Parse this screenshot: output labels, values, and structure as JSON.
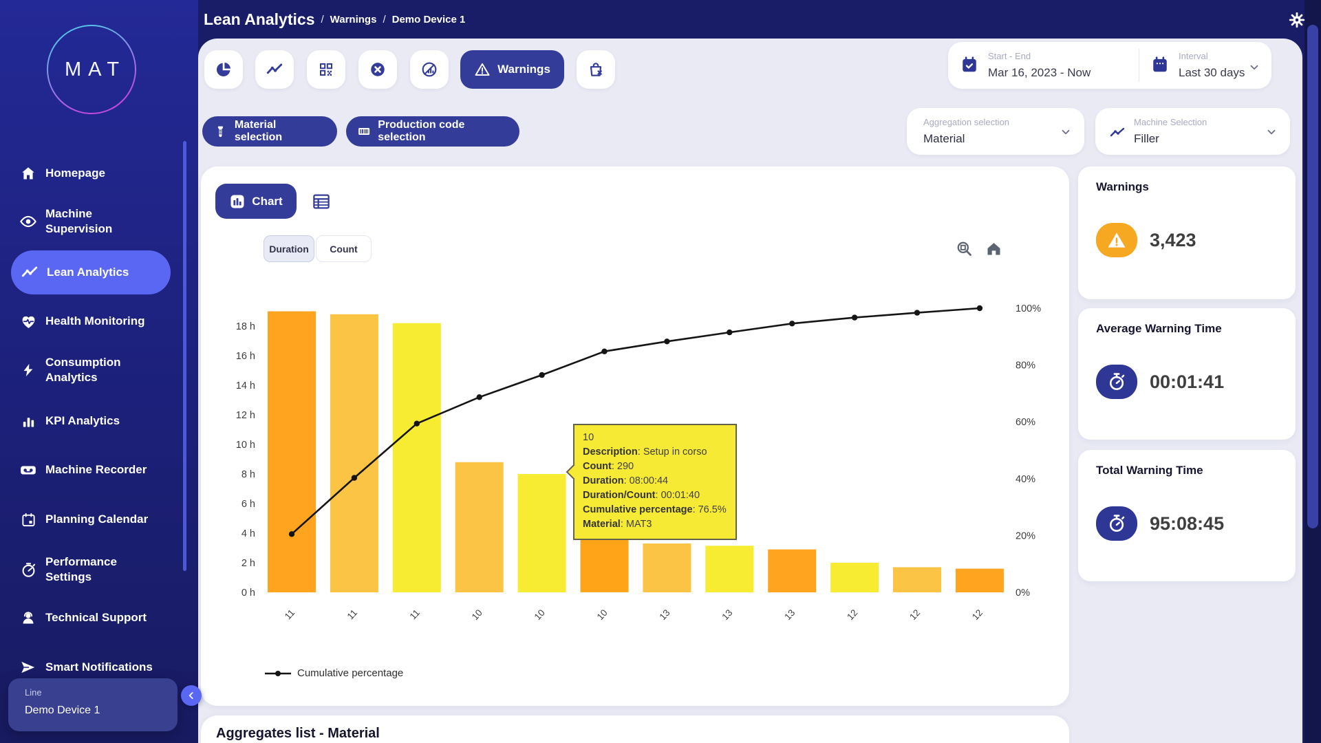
{
  "app": {
    "logo_text": "MAT"
  },
  "header": {
    "title": "Lean Analytics",
    "breadcrumbs": [
      "Warnings",
      "Demo Device 1"
    ],
    "gear_icon": "gear-icon"
  },
  "sidebar": {
    "items": [
      {
        "label": "Homepage",
        "icon": "home",
        "active": false
      },
      {
        "label": "Machine Supervision",
        "icon": "eye",
        "active": false
      },
      {
        "label": "Lean Analytics",
        "icon": "trend",
        "active": true
      },
      {
        "label": "Health Monitoring",
        "icon": "heart",
        "active": false
      },
      {
        "label": "Consumption Analytics",
        "icon": "bolt",
        "active": false
      },
      {
        "label": "KPI Analytics",
        "icon": "kpi",
        "active": false
      },
      {
        "label": "Machine Recorder",
        "icon": "recorder",
        "active": false
      },
      {
        "label": "Planning Calendar",
        "icon": "calendar",
        "active": false
      },
      {
        "label": "Performance Settings",
        "icon": "gauge",
        "active": false
      },
      {
        "label": "Technical Support",
        "icon": "support",
        "active": false
      },
      {
        "label": "Smart Notifications",
        "icon": "send",
        "active": false
      }
    ],
    "device": {
      "label": "Line",
      "name": "Demo Device 1"
    }
  },
  "toolbar": {
    "icon_buttons": [
      {
        "icon": "pie-chart"
      },
      {
        "icon": "trend-line"
      },
      {
        "icon": "qr-code"
      },
      {
        "icon": "x-circle"
      },
      {
        "icon": "no-data-chart"
      }
    ],
    "warnings_label": "Warnings",
    "bag_icon": "bag-x"
  },
  "filters": {
    "material_button": "Material selection",
    "production_button": "Production code selection",
    "aggregation": {
      "label": "Aggregation selection",
      "value": "Material"
    },
    "machine": {
      "label": "Machine Selection",
      "value": "Filler"
    }
  },
  "daterange": {
    "start_end_label": "Start - End",
    "start_end_value": "Mar 16, 2023 - Now",
    "interval_label": "Interval",
    "interval_value": "Last 30 days"
  },
  "chart_card": {
    "chart_button": "Chart",
    "tabs": [
      {
        "label": "Duration",
        "active": true
      },
      {
        "label": "Count",
        "active": false
      }
    ],
    "legend_label": "Cumulative percentage"
  },
  "tooltip": {
    "title": "10",
    "rows": [
      {
        "label": "Description",
        "value": "Setup in corso"
      },
      {
        "label": "Count",
        "value": "290"
      },
      {
        "label": "Duration",
        "value": "08:00:44"
      },
      {
        "label": "Duration/Count",
        "value": "00:01:40"
      },
      {
        "label": "Cumulative percentage",
        "value": "76.5%"
      },
      {
        "label": "Material",
        "value": "MAT3"
      }
    ]
  },
  "chart_data": {
    "type": "bar",
    "subtype": "pareto (bar + cumulative line)",
    "categories": [
      "11",
      "11",
      "11",
      "10",
      "10",
      "10",
      "13",
      "13",
      "13",
      "12",
      "12",
      "12"
    ],
    "series": [
      {
        "name": "Duration (hours)",
        "type": "bar",
        "values": [
          19.0,
          18.8,
          18.2,
          8.8,
          8.0,
          7.9,
          3.3,
          3.15,
          2.9,
          2.0,
          1.7,
          1.6
        ],
        "bar_colors": [
          "#FFA41F",
          "#FCC445",
          "#F8EC33",
          "#FCC445",
          "#F8EC33",
          "#FFA318",
          "#FCC445",
          "#F8EC33",
          "#FFA41F",
          "#F8EC33",
          "#FCC445",
          "#FFA41F"
        ]
      },
      {
        "name": "Cumulative percentage",
        "type": "line",
        "values": [
          20.5,
          40.3,
          59.4,
          68.7,
          76.5,
          84.8,
          88.3,
          91.5,
          94.6,
          96.7,
          98.4,
          100
        ],
        "color": "#151515"
      }
    ],
    "yticks_left": [
      "0 h",
      "2 h",
      "4 h",
      "6 h",
      "8 h",
      "10 h",
      "12 h",
      "14 h",
      "16 h",
      "18 h"
    ],
    "ylim_left": [
      0,
      19.3
    ],
    "yticks_right": [
      "0%",
      "20%",
      "40%",
      "60%",
      "80%",
      "100%"
    ],
    "ylim_right": [
      0,
      100
    ],
    "grid": false,
    "legend_position": "bottom-left"
  },
  "stats": [
    {
      "title": "Warnings",
      "value": "3,423",
      "icon": "warning-badge",
      "badge_color": "#F7A823"
    },
    {
      "title": "Average Warning Time",
      "value": "00:01:41",
      "icon": "stopwatch",
      "badge_color": "#2F3796"
    },
    {
      "title": "Total Warning Time",
      "value": "95:08:45",
      "icon": "stopwatch",
      "badge_color": "#2F3796"
    }
  ],
  "bottom": {
    "title": "Aggregates list - Material"
  },
  "colors": {
    "sidebar_active": "#5A67F2",
    "button_indigo": "#333C98",
    "panel_bg": "#E9EAF4",
    "tooltip_bg": "#F7EA35",
    "orange_badge": "#F7A823",
    "indigo_badge": "#2F3796"
  }
}
